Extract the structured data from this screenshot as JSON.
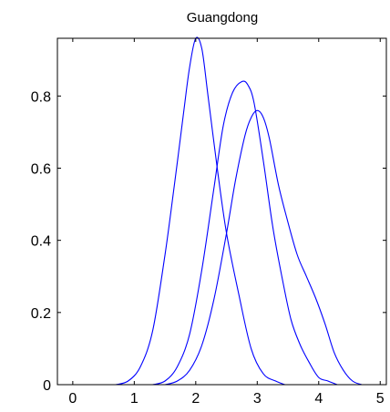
{
  "chart_data": {
    "type": "line",
    "title": "Guangdong",
    "xlabel": "",
    "ylabel": "",
    "xlim": [
      -0.25,
      5.1
    ],
    "ylim": [
      0,
      0.96
    ],
    "xticks": [
      0,
      1,
      2,
      3,
      4,
      5
    ],
    "xtick_labels": [
      "0",
      "1",
      "2",
      "3",
      "4",
      "5"
    ],
    "yticks": [
      0,
      0.2,
      0.4,
      0.6,
      0.8
    ],
    "ytick_labels": [
      "0",
      "0.2",
      "0.4",
      "0.6",
      "0.8"
    ],
    "grid": false,
    "legend": "none",
    "series_color": "#0000ff",
    "series": [
      {
        "x": [
          0.7,
          0.9,
          1.1,
          1.3,
          1.5,
          1.65,
          1.8,
          1.9,
          2.0,
          2.1,
          2.2,
          2.35,
          2.5,
          2.7,
          2.9,
          3.1,
          3.3,
          3.45
        ],
        "y": [
          0.0,
          0.01,
          0.05,
          0.15,
          0.36,
          0.55,
          0.75,
          0.88,
          0.96,
          0.93,
          0.8,
          0.6,
          0.42,
          0.25,
          0.1,
          0.03,
          0.01,
          0.0
        ]
      },
      {
        "x": [
          1.3,
          1.5,
          1.7,
          1.9,
          2.1,
          2.3,
          2.45,
          2.6,
          2.75,
          2.85,
          2.95,
          3.1,
          3.25,
          3.4,
          3.55,
          3.7,
          3.85,
          4.0,
          4.15,
          4.3
        ],
        "y": [
          0.0,
          0.01,
          0.05,
          0.14,
          0.32,
          0.55,
          0.72,
          0.81,
          0.84,
          0.83,
          0.78,
          0.62,
          0.44,
          0.3,
          0.18,
          0.11,
          0.06,
          0.02,
          0.01,
          0.0
        ]
      },
      {
        "x": [
          1.5,
          1.7,
          1.9,
          2.1,
          2.3,
          2.5,
          2.65,
          2.8,
          2.9,
          3.0,
          3.1,
          3.2,
          3.35,
          3.5,
          3.65,
          3.8,
          3.95,
          4.1,
          4.25,
          4.4,
          4.55,
          4.7
        ],
        "y": [
          0.0,
          0.01,
          0.04,
          0.11,
          0.24,
          0.42,
          0.57,
          0.69,
          0.74,
          0.76,
          0.74,
          0.68,
          0.55,
          0.45,
          0.36,
          0.3,
          0.24,
          0.17,
          0.09,
          0.04,
          0.01,
          0.0
        ]
      }
    ]
  }
}
